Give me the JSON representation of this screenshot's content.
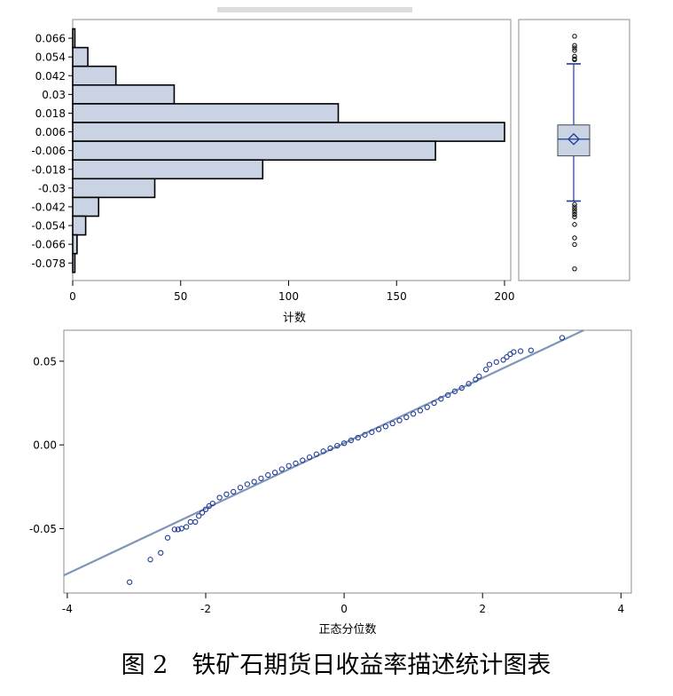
{
  "figure": {
    "caption": "图 2　铁矿石期货日收益率描述统计图表"
  },
  "chart_data": [
    {
      "type": "bar",
      "orientation": "horizontal",
      "title": "",
      "xlabel": "计数",
      "ylabel": "",
      "categories": [
        "0.066",
        "0.054",
        "0.042",
        "0.03",
        "0.018",
        "0.006",
        "-0.006",
        "-0.018",
        "-0.03",
        "-0.042",
        "-0.054",
        "-0.066",
        "-0.078"
      ],
      "values": [
        1,
        7,
        20,
        47,
        123,
        200,
        168,
        88,
        38,
        12,
        6,
        2,
        1
      ],
      "xlim": [
        0,
        200
      ],
      "xticks": [
        "0",
        "50",
        "100",
        "150",
        "200"
      ],
      "bar_color": "#c9d3e4",
      "grid": false
    },
    {
      "type": "box",
      "orientation": "vertical",
      "ylim": [
        -0.0835,
        0.0725
      ],
      "median": 0.001,
      "mean": 0.001,
      "q1": -0.009,
      "q3": 0.0095,
      "whisker_low": -0.036,
      "whisker_high": 0.046,
      "outliers": [
        0.0625,
        0.057,
        0.0555,
        0.054,
        0.0505,
        0.049,
        0.0485,
        -0.038,
        -0.0395,
        -0.041,
        -0.0425,
        -0.044,
        -0.0455,
        -0.05,
        -0.058,
        -0.062,
        -0.0765
      ],
      "box_color": "#c9d3e4",
      "line_color": "#1f3b95"
    },
    {
      "type": "scatter",
      "title": "",
      "xlabel": "正态分位数",
      "ylabel": "",
      "xlim": [
        -4.05,
        4.15
      ],
      "ylim": [
        -0.0885,
        0.0685
      ],
      "xticks": [
        "-4",
        "-2",
        "0",
        "2",
        "4"
      ],
      "yticks": [
        "-0.05",
        "0.00",
        "0.05"
      ],
      "reference_line": {
        "intercept": 0.001,
        "slope": 0.0195
      },
      "points_x": [
        -3.1,
        -2.8,
        -2.65,
        -2.55,
        -2.45,
        -2.4,
        -2.35,
        -2.28,
        -2.22,
        -2.15,
        -2.1,
        -2.05,
        -2.0,
        -1.95,
        -1.9,
        -1.8,
        -1.7,
        -1.6,
        -1.5,
        -1.4,
        -1.3,
        -1.2,
        -1.1,
        -1.0,
        -0.9,
        -0.8,
        -0.7,
        -0.6,
        -0.5,
        -0.4,
        -0.3,
        -0.2,
        -0.1,
        0.0,
        0.1,
        0.2,
        0.3,
        0.4,
        0.5,
        0.6,
        0.7,
        0.8,
        0.9,
        1.0,
        1.1,
        1.2,
        1.3,
        1.4,
        1.5,
        1.6,
        1.7,
        1.8,
        1.9,
        1.95,
        2.05,
        2.1,
        2.2,
        2.3,
        2.35,
        2.4,
        2.45,
        2.55,
        2.7,
        3.15
      ],
      "points_y": [
        -0.082,
        -0.0685,
        -0.0645,
        -0.0555,
        -0.0505,
        -0.0505,
        -0.05,
        -0.049,
        -0.046,
        -0.046,
        -0.0425,
        -0.0405,
        -0.0385,
        -0.0365,
        -0.035,
        -0.0315,
        -0.0295,
        -0.028,
        -0.0255,
        -0.0235,
        -0.022,
        -0.02,
        -0.018,
        -0.0165,
        -0.0145,
        -0.0125,
        -0.011,
        -0.0092,
        -0.0074,
        -0.0056,
        -0.0038,
        -0.002,
        -0.0005,
        0.001,
        0.0027,
        0.0043,
        0.006,
        0.0076,
        0.0093,
        0.011,
        0.0128,
        0.0146,
        0.0165,
        0.0185,
        0.0205,
        0.0225,
        0.025,
        0.0275,
        0.0298,
        0.032,
        0.034,
        0.0365,
        0.039,
        0.041,
        0.045,
        0.048,
        0.0495,
        0.0508,
        0.0525,
        0.0542,
        0.0555,
        0.056,
        0.0565,
        0.064
      ],
      "marker_color": "#1f3b95",
      "line_color": "#7f96b8",
      "grid": false
    }
  ]
}
